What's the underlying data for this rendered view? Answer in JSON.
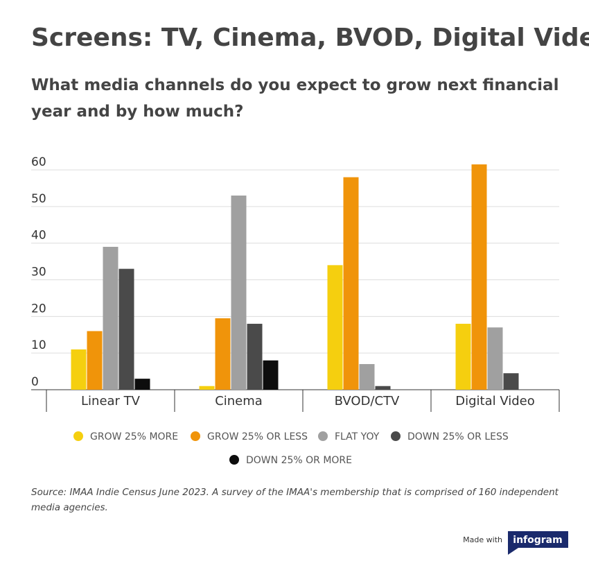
{
  "chart_data": {
    "type": "bar",
    "title": "Screens: TV, Cinema, BVOD, Digital Video",
    "subtitle": [
      "What media channels do you expect to grow next financial",
      "year and by how much?"
    ],
    "categories": [
      "Linear TV",
      "Cinema",
      "BVOD/CTV",
      "Digital Video"
    ],
    "series": [
      {
        "name": "GROW 25% MORE",
        "color": "#f5cf0f",
        "values": [
          11,
          1,
          34,
          18
        ]
      },
      {
        "name": "GROW 25% OR LESS",
        "color": "#f0940a",
        "values": [
          16,
          19.5,
          58,
          61.5
        ]
      },
      {
        "name": "FLAT YOY",
        "color": "#a0a0a0",
        "values": [
          39,
          53,
          7,
          17
        ]
      },
      {
        "name": "DOWN 25% OR LESS",
        "color": "#4a4a4a",
        "values": [
          33,
          18,
          1,
          4.5
        ]
      },
      {
        "name": "DOWN 25% OR MORE",
        "color": "#0d0d0d",
        "values": [
          3,
          8,
          0,
          0
        ]
      }
    ],
    "ylim": [
      0,
      60
    ],
    "yticks": [
      0,
      10,
      20,
      30,
      40,
      50,
      60
    ],
    "grid": true,
    "source": [
      "Source: IMAA Indie Census June 2023. A survey of the IMAA's membership that is comprised of 160 independent",
      "media agencies."
    ],
    "footer": [
      "Made with",
      "infogram"
    ]
  }
}
